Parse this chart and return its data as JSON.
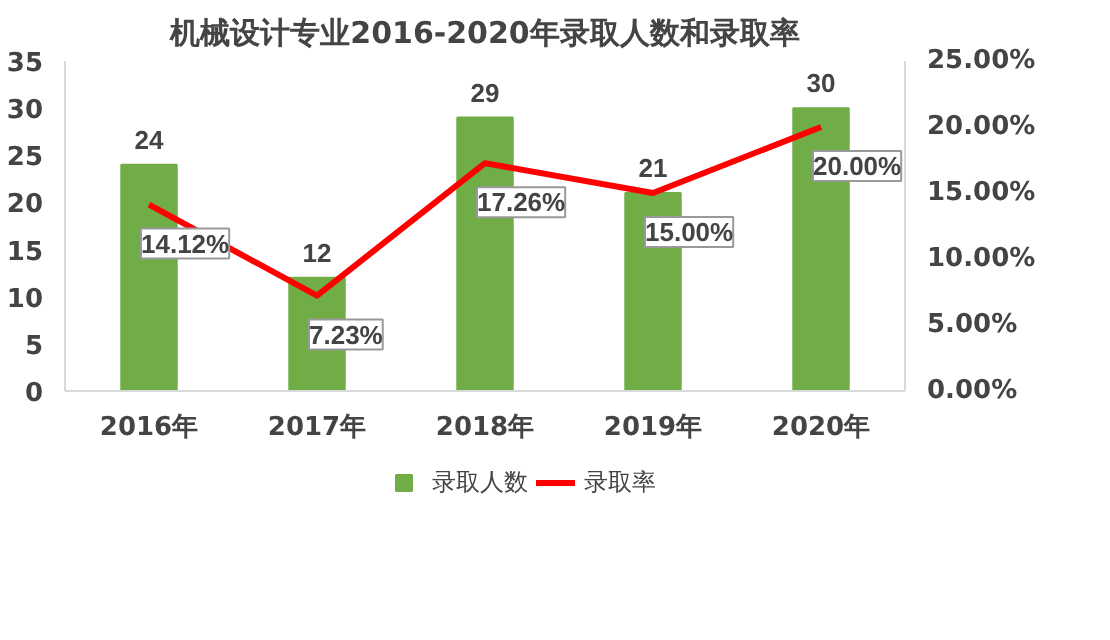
{
  "chart_data": {
    "type": "bar",
    "title": "机械设计专业2016-2020年录取人数和录取率",
    "categories": [
      "2016年",
      "2017年",
      "2018年",
      "2019年",
      "2020年"
    ],
    "series": [
      {
        "name": "录取人数",
        "color": "#70ad47",
        "values": [
          24,
          12,
          29,
          21,
          30
        ]
      },
      {
        "name": "录取率",
        "type": "line",
        "axis": "y2",
        "color": "#ff0000",
        "values": [
          14.12,
          7.23,
          17.26,
          15.0,
          20.0
        ],
        "value_labels": [
          "14.12%",
          "7.23%",
          "17.26%",
          "15.00%",
          "20.00%"
        ]
      }
    ],
    "data_labels": true,
    "ylim": [
      0,
      35
    ],
    "yticks": [
      0,
      5,
      10,
      15,
      20,
      25,
      30,
      35
    ],
    "y2lim": [
      0,
      25
    ],
    "y2ticks": [
      {
        "value": 0,
        "label": "0.00%"
      },
      {
        "value": 5,
        "label": "5.00%"
      },
      {
        "value": 10,
        "label": "10.00%"
      },
      {
        "value": 15,
        "label": "15.00%"
      },
      {
        "value": 20,
        "label": "20.00%"
      },
      {
        "value": 25,
        "label": "25.00%"
      }
    ],
    "grid": false,
    "legend": "bottom"
  }
}
